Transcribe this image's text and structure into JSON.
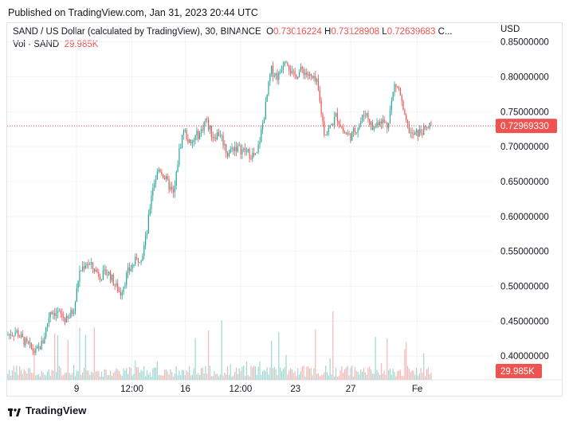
{
  "header": {
    "published": "Published on TradingView.com, Jan 31, 2023 20:44 UTC"
  },
  "legend": {
    "symbol": "SAND / US Dollar (calculated by TradingView), 30, BINANCE",
    "o_label": "O",
    "o_value": "0.73016224",
    "h_label": "H",
    "h_value": "0.73128908",
    "l_label": "L",
    "l_value": "0.72639683",
    "c_label": "C...",
    "vol_label": "Vol · SAND",
    "vol_value": "29.985K"
  },
  "axis": {
    "currency": "USD"
  },
  "colors": {
    "up": "#26a69a",
    "down": "#ef5350",
    "up_vol": "#9fd6d0",
    "down_vol": "#f7b5b3"
  },
  "footer": {
    "brand": "TradingView"
  },
  "chart_data": {
    "type": "candlestick",
    "y_ticks": [
      "0.85000000",
      "0.80000000",
      "0.75000000",
      "0.70000000",
      "0.65000000",
      "0.60000000",
      "0.55000000",
      "0.50000000",
      "0.45000000",
      "0.40000000"
    ],
    "y_tick_values": [
      0.85,
      0.8,
      0.75,
      0.7,
      0.65,
      0.6,
      0.55,
      0.5,
      0.45,
      0.4
    ],
    "ylim": [
      0.366,
      0.877
    ],
    "x_ticks": [
      "9",
      "12:00",
      "16",
      "12:00",
      "23",
      "27",
      "Fe"
    ],
    "x_tick_positions": [
      0.143,
      0.257,
      0.367,
      0.481,
      0.594,
      0.708,
      0.845
    ],
    "current_price": 0.7297,
    "current_price_label": "0.72969330",
    "volume_label": "29.985K",
    "price_path": [
      [
        0.0,
        0.43
      ],
      [
        0.02,
        0.435
      ],
      [
        0.04,
        0.418
      ],
      [
        0.06,
        0.405
      ],
      [
        0.075,
        0.42
      ],
      [
        0.09,
        0.465
      ],
      [
        0.11,
        0.46
      ],
      [
        0.125,
        0.45
      ],
      [
        0.14,
        0.47
      ],
      [
        0.15,
        0.52
      ],
      [
        0.165,
        0.535
      ],
      [
        0.18,
        0.525
      ],
      [
        0.195,
        0.515
      ],
      [
        0.21,
        0.52
      ],
      [
        0.225,
        0.5
      ],
      [
        0.235,
        0.49
      ],
      [
        0.25,
        0.52
      ],
      [
        0.265,
        0.535
      ],
      [
        0.28,
        0.545
      ],
      [
        0.29,
        0.58
      ],
      [
        0.3,
        0.64
      ],
      [
        0.315,
        0.67
      ],
      [
        0.33,
        0.65
      ],
      [
        0.345,
        0.63
      ],
      [
        0.355,
        0.69
      ],
      [
        0.365,
        0.725
      ],
      [
        0.38,
        0.7
      ],
      [
        0.39,
        0.715
      ],
      [
        0.4,
        0.72
      ],
      [
        0.41,
        0.74
      ],
      [
        0.425,
        0.715
      ],
      [
        0.44,
        0.72
      ],
      [
        0.455,
        0.69
      ],
      [
        0.47,
        0.7
      ],
      [
        0.485,
        0.695
      ],
      [
        0.5,
        0.69
      ],
      [
        0.515,
        0.685
      ],
      [
        0.53,
        0.74
      ],
      [
        0.545,
        0.81
      ],
      [
        0.56,
        0.8
      ],
      [
        0.575,
        0.83
      ],
      [
        0.59,
        0.8
      ],
      [
        0.61,
        0.81
      ],
      [
        0.625,
        0.8
      ],
      [
        0.64,
        0.79
      ],
      [
        0.655,
        0.72
      ],
      [
        0.665,
        0.725
      ],
      [
        0.68,
        0.745
      ],
      [
        0.695,
        0.72
      ],
      [
        0.71,
        0.715
      ],
      [
        0.725,
        0.73
      ],
      [
        0.74,
        0.75
      ],
      [
        0.755,
        0.725
      ],
      [
        0.77,
        0.74
      ],
      [
        0.785,
        0.73
      ],
      [
        0.8,
        0.79
      ],
      [
        0.81,
        0.78
      ],
      [
        0.82,
        0.74
      ],
      [
        0.835,
        0.715
      ],
      [
        0.85,
        0.72
      ],
      [
        0.865,
        0.725
      ],
      [
        0.875,
        0.73
      ]
    ]
  }
}
